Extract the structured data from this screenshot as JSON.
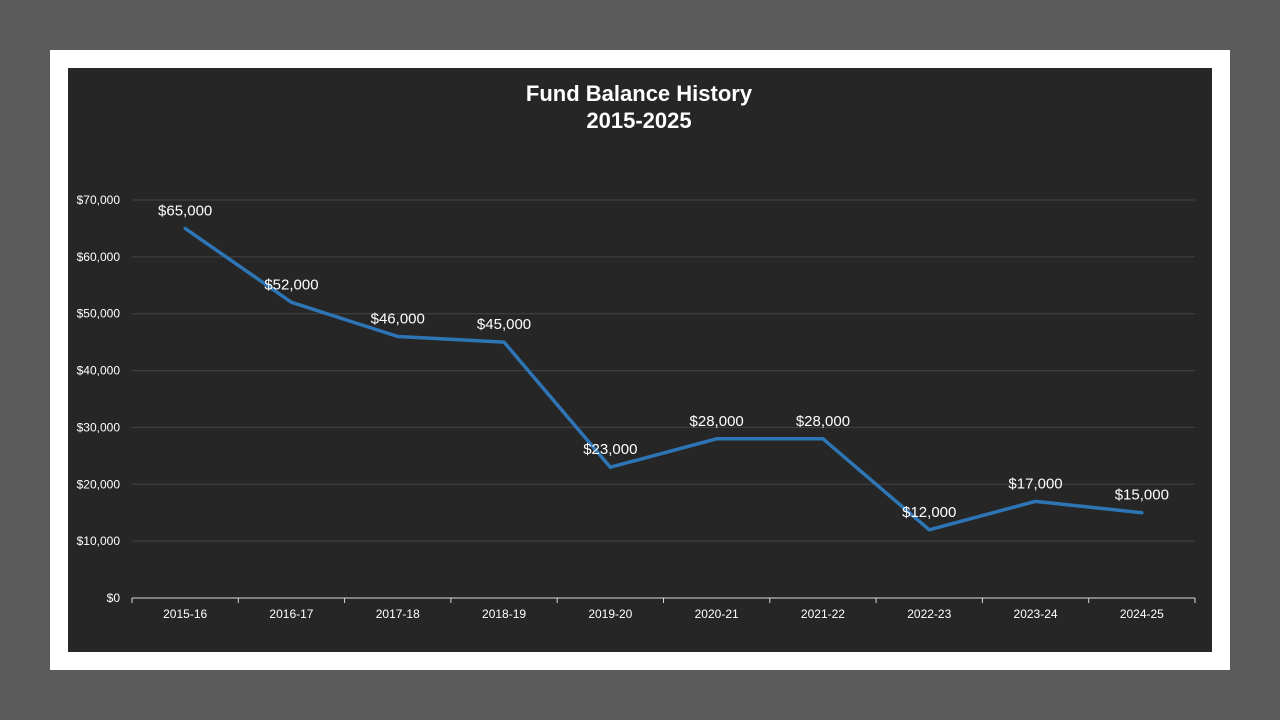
{
  "colors": {
    "page_background": "#5b5b5b",
    "frame": "#ffffff",
    "plot_background": "#262626",
    "gridline": "#444444",
    "axis": "#d9d9d9",
    "line": "#2e75b6",
    "text": "#ffffff"
  },
  "chart_data": {
    "type": "line",
    "title": "Fund Balance History",
    "subtitle": "2015-2025",
    "categories": [
      "2015-16",
      "2016-17",
      "2017-18",
      "2018-19",
      "2019-20",
      "2020-21",
      "2021-22",
      "2022-23",
      "2023-24",
      "2024-25"
    ],
    "series": [
      {
        "values": [
          65000,
          52000,
          46000,
          45000,
          23000,
          28000,
          28000,
          12000,
          17000,
          15000
        ],
        "data_labels": [
          "$65,000",
          "$52,000",
          "$46,000",
          "$45,000",
          "$23,000",
          "$28,000",
          "$28,000",
          "$12,000",
          "$17,000",
          "$15,000"
        ]
      }
    ],
    "ylim": [
      0,
      70000
    ],
    "y_ticks": [
      0,
      10000,
      20000,
      30000,
      40000,
      50000,
      60000,
      70000
    ],
    "y_tick_labels": [
      "$0",
      "$10,000",
      "$20,000",
      "$30,000",
      "$40,000",
      "$50,000",
      "$60,000",
      "$70,000"
    ],
    "grid": true,
    "legend": "none"
  }
}
